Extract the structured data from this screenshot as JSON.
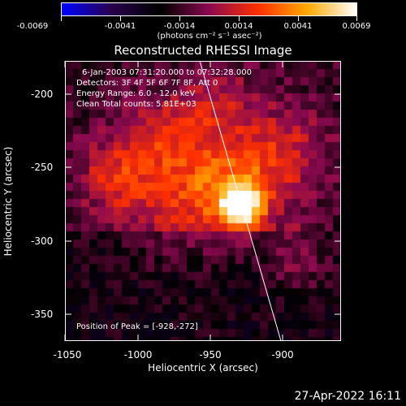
{
  "colorbar": {
    "tick_labels": [
      "-0.0069",
      "-0.0041",
      "-0.0014",
      "0.0014",
      "0.0041",
      "0.0069"
    ],
    "unit_label": "(photons cm⁻² s⁻¹ asec⁻²)",
    "colors": [
      "#0000ff",
      "#2a0050",
      "#000000",
      "#8b0a50",
      "#ff3000",
      "#ffaa00",
      "#ffffff"
    ]
  },
  "title": "Reconstructed RHESSI Image",
  "info": {
    "line1": "6-Jan-2003 07:31:20.000 to 07:32:28.000",
    "line2": "Detectors: 3F 4F 5F 6F 7F 8F, Att 0",
    "line3": "Energy Range: 6.0 - 12.0 keV",
    "line4": "Clean     Total counts: 5.81E+03"
  },
  "peak_label": "Position of Peak = [-928,-272]",
  "axes": {
    "xlabel": "Heliocentric X (arcsec)",
    "ylabel": "Heliocentric Y (arcsec)",
    "xticks": [
      "-1050",
      "-1000",
      "-950",
      "-900"
    ],
    "yticks": [
      "-200",
      "-250",
      "-300",
      "-350"
    ],
    "xlim": [
      -1058,
      -868
    ],
    "ylim": [
      -370,
      -178
    ]
  },
  "timestamp": "27-Apr-2022 16:11"
}
